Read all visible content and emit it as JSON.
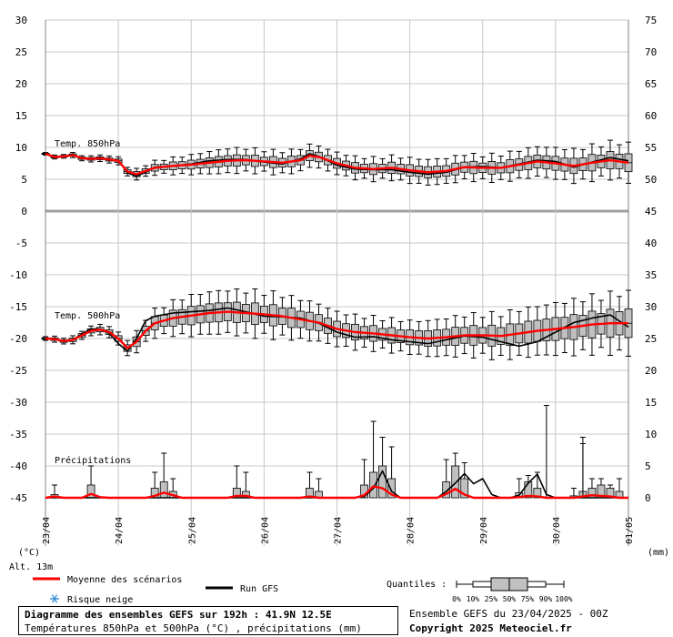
{
  "chart_data": {
    "type": "boxplot-ensemble",
    "title": "Diagramme des ensembles GEFS sur 192h : 41.9N 12.5E",
    "subtitle": "Températures 850hPa et 500hPa (°C) , précipitations (mm)",
    "run_info": "Ensemble GEFS du 23/04/2025 - 00Z",
    "copyright": "Copyright 2025 Meteociel.fr",
    "left_unit": "(°C)",
    "right_unit": "(mm)",
    "altitude": "Alt. 13m",
    "left_ticks": [
      30,
      25,
      20,
      15,
      10,
      5,
      0,
      -5,
      -10,
      -15,
      -20,
      -25,
      -30,
      -35,
      -40,
      -45
    ],
    "right_ticks": [
      75,
      70,
      65,
      60,
      55,
      50,
      45,
      40,
      35,
      30,
      25,
      20,
      15,
      10,
      5,
      0
    ],
    "left_range": [
      -45,
      30
    ],
    "x_range_hours": [
      0,
      192
    ],
    "x_labels": [
      {
        "h": 0,
        "label": "23/04"
      },
      {
        "h": 24,
        "label": "24/04"
      },
      {
        "h": 48,
        "label": "25/04"
      },
      {
        "h": 72,
        "label": "26/04"
      },
      {
        "h": 96,
        "label": "27/04"
      },
      {
        "h": 120,
        "label": "28/04"
      },
      {
        "h": 144,
        "label": "29/04"
      },
      {
        "h": 168,
        "label": "30/04"
      },
      {
        "h": 192,
        "label": "01/05"
      }
    ],
    "series_labels": {
      "t850": "Temp. 850hPa",
      "t500": "Temp. 500hPa",
      "precip": "Précipitations"
    },
    "t850": {
      "mean_knots": [
        [
          0,
          9
        ],
        [
          3,
          8.5
        ],
        [
          6,
          8.6
        ],
        [
          9,
          8.8
        ],
        [
          12,
          8.3
        ],
        [
          15,
          8.2
        ],
        [
          18,
          8.3
        ],
        [
          21,
          8.1
        ],
        [
          24,
          7.9
        ],
        [
          27,
          6.2
        ],
        [
          30,
          5.8
        ],
        [
          33,
          6.3
        ],
        [
          36,
          6.8
        ],
        [
          42,
          7.1
        ],
        [
          48,
          7.3
        ],
        [
          54,
          7.6
        ],
        [
          60,
          7.9
        ],
        [
          66,
          8
        ],
        [
          72,
          7.8
        ],
        [
          78,
          7.6
        ],
        [
          84,
          8
        ],
        [
          87,
          8.7
        ],
        [
          90,
          8.5
        ],
        [
          96,
          7.5
        ],
        [
          102,
          6.8
        ],
        [
          108,
          6.6
        ],
        [
          114,
          6.8
        ],
        [
          120,
          6.4
        ],
        [
          126,
          6.1
        ],
        [
          132,
          6.3
        ],
        [
          138,
          6.9
        ],
        [
          144,
          6.8
        ],
        [
          150,
          6.8
        ],
        [
          156,
          7.3
        ],
        [
          162,
          7.8
        ],
        [
          168,
          7.5
        ],
        [
          174,
          7.1
        ],
        [
          180,
          7.6
        ],
        [
          186,
          8
        ],
        [
          192,
          7.6
        ]
      ],
      "gfs_knots": [
        [
          0,
          9
        ],
        [
          3,
          8.4
        ],
        [
          6,
          8.6
        ],
        [
          9,
          8.9
        ],
        [
          12,
          8.2
        ],
        [
          15,
          8.3
        ],
        [
          18,
          8.4
        ],
        [
          21,
          8
        ],
        [
          24,
          8
        ],
        [
          27,
          6
        ],
        [
          30,
          5.5
        ],
        [
          33,
          6.1
        ],
        [
          36,
          6.9
        ],
        [
          42,
          7.1
        ],
        [
          48,
          7.4
        ],
        [
          54,
          7.9
        ],
        [
          60,
          8.1
        ],
        [
          66,
          8.1
        ],
        [
          72,
          7.7
        ],
        [
          78,
          7.4
        ],
        [
          84,
          8.2
        ],
        [
          87,
          9
        ],
        [
          90,
          8.6
        ],
        [
          96,
          7.2
        ],
        [
          102,
          6.6
        ],
        [
          108,
          6.5
        ],
        [
          114,
          6.5
        ],
        [
          120,
          6.1
        ],
        [
          126,
          5.8
        ],
        [
          132,
          6.1
        ],
        [
          138,
          6.9
        ],
        [
          144,
          7
        ],
        [
          150,
          6.8
        ],
        [
          156,
          7.4
        ],
        [
          162,
          8
        ],
        [
          168,
          7.8
        ],
        [
          174,
          6.9
        ],
        [
          180,
          7.7
        ],
        [
          186,
          8.4
        ],
        [
          192,
          7.9
        ]
      ],
      "spread_knots": [
        [
          0,
          0.2
        ],
        [
          24,
          0.5
        ],
        [
          36,
          0.9
        ],
        [
          60,
          1.6
        ],
        [
          96,
          1.4
        ],
        [
          120,
          1.6
        ],
        [
          144,
          1.7
        ],
        [
          168,
          2
        ],
        [
          192,
          2.5
        ]
      ]
    },
    "t500": {
      "mean_knots": [
        [
          0,
          -20
        ],
        [
          3,
          -20.1
        ],
        [
          6,
          -20.4
        ],
        [
          9,
          -20.2
        ],
        [
          12,
          -19.5
        ],
        [
          15,
          -18.8
        ],
        [
          18,
          -18.6
        ],
        [
          21,
          -19
        ],
        [
          24,
          -20
        ],
        [
          27,
          -21.5
        ],
        [
          30,
          -20.5
        ],
        [
          33,
          -18.8
        ],
        [
          36,
          -17.6
        ],
        [
          42,
          -16.8
        ],
        [
          48,
          -16.4
        ],
        [
          54,
          -16
        ],
        [
          60,
          -15.8
        ],
        [
          66,
          -16
        ],
        [
          72,
          -16.2
        ],
        [
          78,
          -16.5
        ],
        [
          84,
          -17
        ],
        [
          90,
          -17.5
        ],
        [
          96,
          -18.5
        ],
        [
          102,
          -19
        ],
        [
          108,
          -19.2
        ],
        [
          114,
          -19.5
        ],
        [
          120,
          -19.8
        ],
        [
          126,
          -20
        ],
        [
          132,
          -19.8
        ],
        [
          138,
          -19.5
        ],
        [
          144,
          -19.5
        ],
        [
          150,
          -19.6
        ],
        [
          156,
          -19.2
        ],
        [
          162,
          -18.8
        ],
        [
          168,
          -18.5
        ],
        [
          174,
          -18.2
        ],
        [
          180,
          -17.8
        ],
        [
          186,
          -17.6
        ],
        [
          192,
          -17.6
        ]
      ],
      "gfs_knots": [
        [
          0,
          -20
        ],
        [
          3,
          -20
        ],
        [
          6,
          -20.5
        ],
        [
          9,
          -20.2
        ],
        [
          12,
          -19.3
        ],
        [
          15,
          -18.5
        ],
        [
          18,
          -18.5
        ],
        [
          21,
          -19.2
        ],
        [
          24,
          -20.8
        ],
        [
          27,
          -22
        ],
        [
          30,
          -20
        ],
        [
          33,
          -17.2
        ],
        [
          36,
          -16.5
        ],
        [
          42,
          -16
        ],
        [
          48,
          -15.8
        ],
        [
          54,
          -15.6
        ],
        [
          60,
          -15.2
        ],
        [
          66,
          -15.8
        ],
        [
          72,
          -16.5
        ],
        [
          78,
          -16.6
        ],
        [
          84,
          -16.8
        ],
        [
          90,
          -17.6
        ],
        [
          96,
          -19
        ],
        [
          102,
          -19.8
        ],
        [
          108,
          -19.7
        ],
        [
          114,
          -20.2
        ],
        [
          120,
          -20.5
        ],
        [
          126,
          -20.8
        ],
        [
          132,
          -20.2
        ],
        [
          138,
          -19.6
        ],
        [
          144,
          -19.8
        ],
        [
          150,
          -20.5
        ],
        [
          156,
          -21.2
        ],
        [
          162,
          -20.5
        ],
        [
          168,
          -19
        ],
        [
          174,
          -17.5
        ],
        [
          180,
          -16.8
        ],
        [
          186,
          -16.3
        ],
        [
          192,
          -18.2
        ]
      ],
      "spread_knots": [
        [
          0,
          0.3
        ],
        [
          24,
          0.8
        ],
        [
          33,
          1.6
        ],
        [
          48,
          2.6
        ],
        [
          72,
          3
        ],
        [
          96,
          2.2
        ],
        [
          120,
          2.1
        ],
        [
          144,
          2.8
        ],
        [
          168,
          3.3
        ],
        [
          192,
          4
        ]
      ]
    },
    "precip": {
      "mean_knots": [
        [
          0,
          0
        ],
        [
          3,
          0.2
        ],
        [
          6,
          0
        ],
        [
          12,
          0
        ],
        [
          15,
          0.6
        ],
        [
          18,
          0.1
        ],
        [
          21,
          0
        ],
        [
          33,
          0
        ],
        [
          36,
          0.3
        ],
        [
          39,
          0.8
        ],
        [
          42,
          0.4
        ],
        [
          45,
          0
        ],
        [
          60,
          0
        ],
        [
          63,
          0.3
        ],
        [
          66,
          0.3
        ],
        [
          69,
          0
        ],
        [
          84,
          0
        ],
        [
          87,
          0.2
        ],
        [
          90,
          0
        ],
        [
          102,
          0
        ],
        [
          105,
          0.4
        ],
        [
          108,
          1.8
        ],
        [
          111,
          1.5
        ],
        [
          114,
          0.5
        ],
        [
          117,
          0
        ],
        [
          129,
          0
        ],
        [
          132,
          0.6
        ],
        [
          135,
          1.4
        ],
        [
          138,
          0.5
        ],
        [
          141,
          0
        ],
        [
          153,
          0
        ],
        [
          156,
          0.1
        ],
        [
          159,
          0.3
        ],
        [
          162,
          0.2
        ],
        [
          165,
          0
        ],
        [
          174,
          0
        ],
        [
          177,
          0.2
        ],
        [
          180,
          0.4
        ],
        [
          183,
          0.3
        ],
        [
          186,
          0.2
        ],
        [
          189,
          0
        ],
        [
          192,
          0
        ]
      ],
      "gfs_knots": [
        [
          0,
          0
        ],
        [
          102,
          0
        ],
        [
          105,
          0.2
        ],
        [
          108,
          1.5
        ],
        [
          111,
          4.2
        ],
        [
          114,
          1
        ],
        [
          117,
          0
        ],
        [
          129,
          0
        ],
        [
          132,
          1
        ],
        [
          135,
          2.3
        ],
        [
          138,
          3.8
        ],
        [
          141,
          2.2
        ],
        [
          144,
          3
        ],
        [
          147,
          0.5
        ],
        [
          150,
          0
        ],
        [
          153,
          0
        ],
        [
          156,
          0.4
        ],
        [
          159,
          2.3
        ],
        [
          162,
          3.7
        ],
        [
          165,
          0.5
        ],
        [
          168,
          0
        ],
        [
          192,
          0
        ]
      ],
      "boxes": [
        [
          3,
          0.5,
          2
        ],
        [
          15,
          2,
          5
        ],
        [
          36,
          1.5,
          4
        ],
        [
          39,
          2.5,
          7
        ],
        [
          42,
          1,
          3
        ],
        [
          63,
          1.5,
          5
        ],
        [
          66,
          1,
          4
        ],
        [
          87,
          1.5,
          4
        ],
        [
          90,
          1,
          3
        ],
        [
          105,
          2,
          6
        ],
        [
          108,
          4,
          12
        ],
        [
          111,
          5,
          9.5
        ],
        [
          114,
          3,
          8
        ],
        [
          132,
          2.5,
          6
        ],
        [
          135,
          5,
          7
        ],
        [
          138,
          3,
          5.5
        ],
        [
          156,
          0.8,
          3
        ],
        [
          159,
          2.5,
          3.5
        ],
        [
          162,
          1.5,
          4
        ],
        [
          174,
          0.3,
          1.5
        ],
        [
          177,
          1,
          8.5
        ],
        [
          180,
          1.5,
          3
        ],
        [
          183,
          2,
          3
        ],
        [
          186,
          1.5,
          2
        ],
        [
          189,
          1,
          3
        ]
      ],
      "spikes": [
        [
          165,
          14.5
        ],
        [
          177,
          9.5
        ]
      ]
    },
    "legend": {
      "mean_label": "Moyenne des scénarios",
      "mean_color": "#ff0000",
      "gfs_label": "Run GFS",
      "gfs_color": "#000000",
      "snow_label": "Risque neige",
      "snow_icon": "snowflake-icon",
      "quantiles_label": "Quantiles :",
      "quantile_ticks": [
        "0%",
        "10%",
        "25%",
        "50%",
        "75%",
        "90%",
        "100%"
      ]
    },
    "colors": {
      "grid": "#c8c8c8",
      "box_fill": "#c0c0c0",
      "zero_line": "#a0a0a0"
    }
  }
}
